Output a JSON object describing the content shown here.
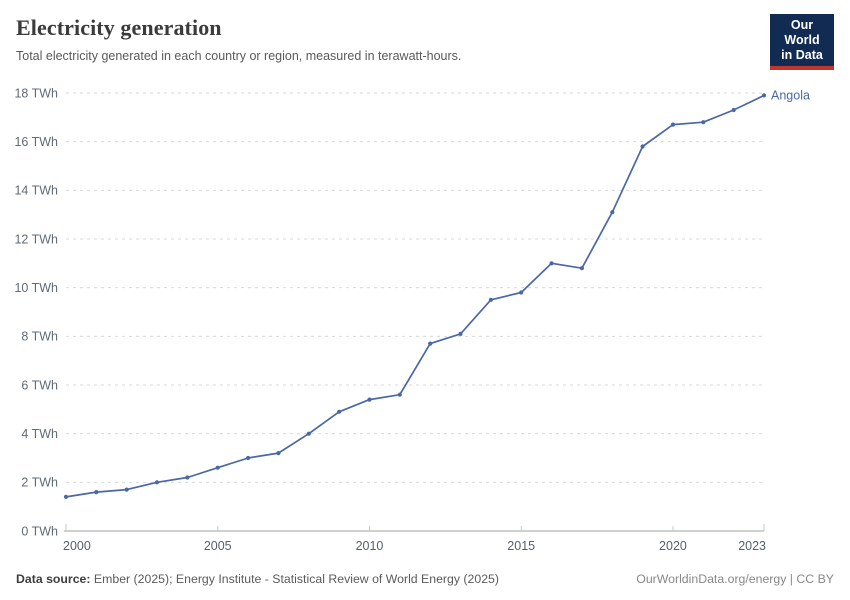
{
  "header": {
    "title": "Electricity generation",
    "subtitle": "Total electricity generated in each country or region, measured in terawatt-hours."
  },
  "logo": {
    "line1": "Our World",
    "line2": "in Data"
  },
  "chart_data": {
    "type": "line",
    "title": "Electricity generation",
    "unit": "TWh",
    "x": [
      2000,
      2001,
      2002,
      2003,
      2004,
      2005,
      2006,
      2007,
      2008,
      2009,
      2010,
      2011,
      2012,
      2013,
      2014,
      2015,
      2016,
      2017,
      2018,
      2019,
      2020,
      2021,
      2022,
      2023
    ],
    "series": [
      {
        "name": "Angola",
        "color": "#4A67A7",
        "values": [
          1.4,
          1.6,
          1.7,
          2.0,
          2.2,
          2.6,
          3.0,
          3.2,
          4.0,
          4.9,
          5.4,
          5.6,
          7.7,
          8.1,
          9.5,
          9.8,
          11.0,
          10.8,
          13.1,
          15.8,
          16.7,
          16.8,
          17.3,
          17.9
        ]
      }
    ],
    "xlim": [
      2000,
      2023
    ],
    "ylim": [
      0,
      18
    ],
    "xticks": [
      2000,
      2005,
      2010,
      2015,
      2020,
      2023
    ],
    "yticks": [
      0,
      2,
      4,
      6,
      8,
      10,
      12,
      14,
      16,
      18
    ],
    "ytick_suffix": " TWh",
    "grid": "horizontal-dashed",
    "legend_position": "end-of-line-label"
  },
  "footer": {
    "source_label": "Data source:",
    "source_text": "Ember (2025); Energy Institute - Statistical Review of World Energy (2025)",
    "credit": "OurWorldinData.org/energy | CC BY"
  },
  "colors": {
    "line": "#4A67A7",
    "grid": "#d7d9dd",
    "axis": "#9ca0a5",
    "axis_tick": "#c6c9cd",
    "tick_label": "#606b78",
    "xtick_label": "#56606d",
    "logo_bg": "#112b52",
    "logo_accent": "#c0372f"
  }
}
